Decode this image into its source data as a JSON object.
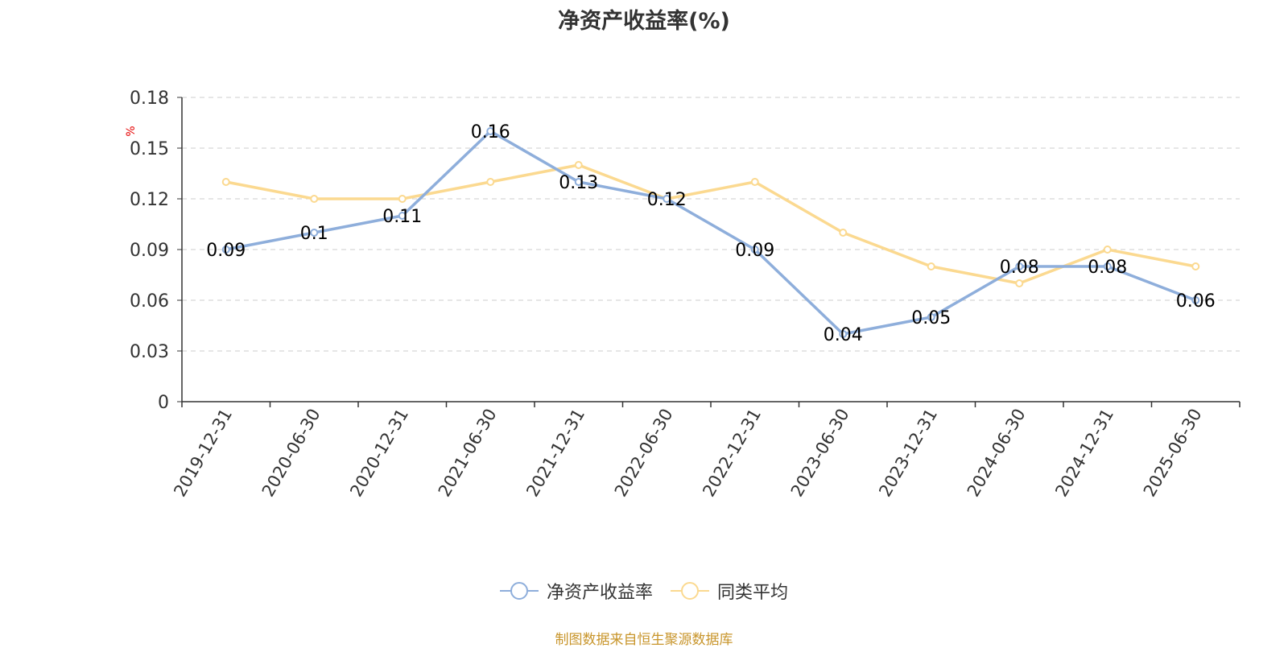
{
  "title": "净资产收益率(%)",
  "source": "制图数据来自恒生聚源数据库",
  "chart_data": {
    "type": "line",
    "title": "净资产收益率(%)",
    "ylabel": "%",
    "xlabel": "",
    "categories": [
      "2019-12-31",
      "2020-06-30",
      "2020-12-31",
      "2021-06-30",
      "2021-12-31",
      "2022-06-30",
      "2022-12-31",
      "2023-06-30",
      "2023-12-31",
      "2024-06-30",
      "2024-12-31",
      "2025-06-30"
    ],
    "ylim": [
      0,
      0.18
    ],
    "yticks": [
      "0",
      "0.03",
      "0.06",
      "0.09",
      "0.12",
      "0.15",
      "0.18"
    ],
    "grid": true,
    "legend_position": "bottom",
    "series": [
      {
        "name": "净资产收益率",
        "color": "#8eaedb",
        "values": [
          0.09,
          0.1,
          0.11,
          0.16,
          0.13,
          0.12,
          0.09,
          0.04,
          0.05,
          0.08,
          0.08,
          0.06
        ],
        "labels": [
          "0.09",
          "0.1",
          "0.11",
          "0.16",
          "0.13",
          "0.12",
          "0.09",
          "0.04",
          "0.05",
          "0.08",
          "0.08",
          "0.06"
        ]
      },
      {
        "name": "同类平均",
        "color": "#fbd990",
        "values": [
          0.13,
          0.12,
          0.12,
          0.13,
          0.14,
          0.12,
          0.13,
          0.1,
          0.08,
          0.07,
          0.09,
          0.08
        ]
      }
    ]
  }
}
